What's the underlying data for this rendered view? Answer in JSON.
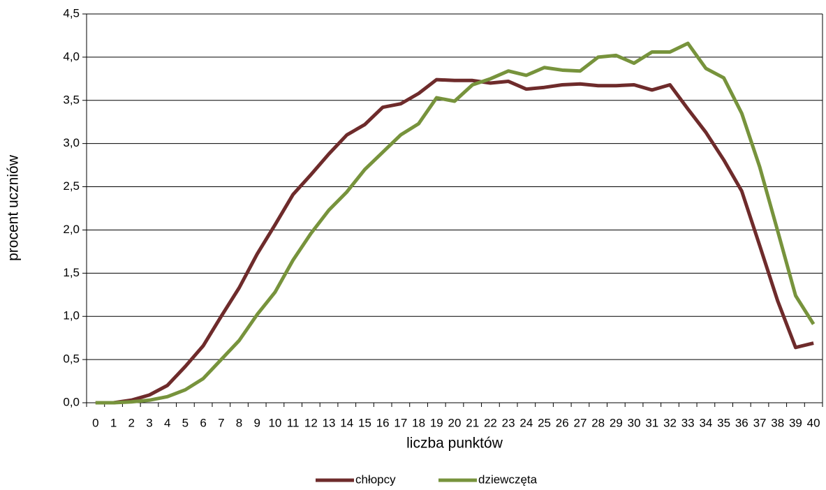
{
  "chart_data": {
    "type": "line",
    "x_label": "liczba punktów",
    "y_label": "procent uczniów",
    "categories": [
      "0",
      "1",
      "2",
      "3",
      "4",
      "5",
      "6",
      "7",
      "8",
      "9",
      "10",
      "11",
      "12",
      "13",
      "14",
      "15",
      "16",
      "17",
      "18",
      "19",
      "20",
      "21",
      "22",
      "23",
      "24",
      "25",
      "26",
      "27",
      "28",
      "29",
      "30",
      "31",
      "32",
      "33",
      "34",
      "35",
      "36",
      "37",
      "38",
      "39",
      "40"
    ],
    "series": [
      {
        "name": "chłopcy",
        "color": "#6e2b2b",
        "values": [
          0,
          0,
          0.03,
          0.09,
          0.2,
          0.42,
          0.66,
          1.0,
          1.33,
          1.72,
          2.06,
          2.41,
          2.64,
          2.88,
          3.1,
          3.22,
          3.42,
          3.46,
          3.58,
          3.74,
          3.73,
          3.73,
          3.7,
          3.72,
          3.63,
          3.65,
          3.68,
          3.69,
          3.67,
          3.67,
          3.68,
          3.62,
          3.68,
          3.4,
          3.13,
          2.81,
          2.45,
          1.82,
          1.18,
          0.64,
          0.69
        ]
      },
      {
        "name": "dziewczęta",
        "color": "#77933c",
        "values": [
          0,
          0,
          0.01,
          0.03,
          0.07,
          0.15,
          0.28,
          0.5,
          0.72,
          1.02,
          1.28,
          1.65,
          1.96,
          2.23,
          2.44,
          2.7,
          2.9,
          3.1,
          3.23,
          3.53,
          3.49,
          3.68,
          3.75,
          3.84,
          3.79,
          3.88,
          3.85,
          3.84,
          4.0,
          4.02,
          3.93,
          4.06,
          4.06,
          4.16,
          3.87,
          3.76,
          3.35,
          2.73,
          1.99,
          1.24,
          0.91
        ]
      }
    ],
    "ylim": [
      0,
      4.5
    ],
    "yticks": [
      {
        "value": 0,
        "label": "0,0"
      },
      {
        "value": 0.5,
        "label": "0,5"
      },
      {
        "value": 1,
        "label": "1,0"
      },
      {
        "value": 1.5,
        "label": "1,5"
      },
      {
        "value": 2,
        "label": "2,0"
      },
      {
        "value": 2.5,
        "label": "2,5"
      },
      {
        "value": 3,
        "label": "3,0"
      },
      {
        "value": 3.5,
        "label": "3,5"
      },
      {
        "value": 4,
        "label": "4,0"
      },
      {
        "value": 4.5,
        "label": "4,5"
      }
    ],
    "grid": true,
    "legend": "bottom"
  }
}
